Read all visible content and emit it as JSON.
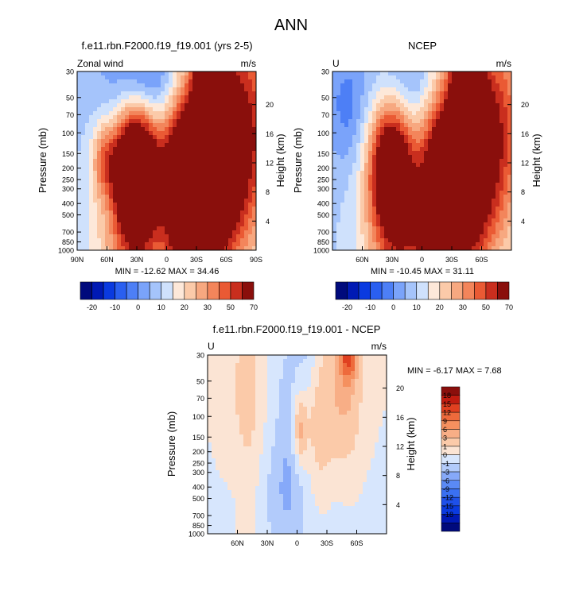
{
  "main_title": "ANN",
  "chart_data": [
    {
      "type": "heatmap",
      "id": "model",
      "title": "f.e11.rbn.F2000.f19_f19.001 (yrs 2-5)",
      "left_label": "Zonal wind",
      "units": "m/s",
      "ylabel": "Pressure (mb)",
      "ylabel_right": "Height (km)",
      "pressure_levels": [
        "30",
        "50",
        "70",
        "100",
        "150",
        "200",
        "250",
        "300",
        "400",
        "500",
        "700",
        "850",
        "1000"
      ],
      "height_ticks": [
        "20",
        "16",
        "12",
        "8",
        "4"
      ],
      "lat_ticks": [
        "90N",
        "60N",
        "30N",
        "0",
        "30S",
        "60S",
        "90S"
      ],
      "stats": "MIN = -12.62  MAX = 34.46",
      "levels": [
        "-20",
        "-10",
        "0",
        "10",
        "20",
        "30",
        "50",
        "70"
      ],
      "palette": [
        "#000a7c",
        "#0019b4",
        "#0a3ae0",
        "#2a5ff0",
        "#4d7ff6",
        "#7aa3fa",
        "#a5c4fb",
        "#cfe1fc",
        "#fde8d9",
        "#fbcaa9",
        "#f7a880",
        "#f3855b",
        "#ea5a34",
        "#c92e1e",
        "#8a0f0c"
      ],
      "background_level": 6,
      "features": [
        {
          "lat": -28,
          "p": 240,
          "wlat": 46,
          "wp": 1.8,
          "v": 16,
          "tilt": 0.32
        },
        {
          "lat": -46,
          "p": 34,
          "wlat": 9,
          "wp": 0.9,
          "v": 17
        },
        {
          "lat": 32,
          "p": 200,
          "wlat": 14,
          "wp": 0.85,
          "v": 11
        },
        {
          "lat": 62,
          "p": 170,
          "wlat": 9,
          "wp": 0.5,
          "v": 4
        },
        {
          "lat": 5,
          "p": 260,
          "wlat": 14,
          "wp": 1.1,
          "v": -4
        },
        {
          "lat": 12,
          "p": 40,
          "wlat": 30,
          "wp": 0.75,
          "v": -5
        },
        {
          "lat": 5,
          "p": 1000,
          "wlat": 18,
          "wp": 0.7,
          "v": -3
        }
      ]
    },
    {
      "type": "heatmap",
      "id": "ncep",
      "title": "NCEP",
      "left_label": "U",
      "units": "m/s",
      "ylabel": "Pressure (mb)",
      "ylabel_right": "Height (km)",
      "pressure_levels": [
        "30",
        "50",
        "70",
        "100",
        "150",
        "200",
        "250",
        "300",
        "400",
        "500",
        "700",
        "850",
        "1000"
      ],
      "height_ticks": [
        "20",
        "16",
        "12",
        "8",
        "4"
      ],
      "lat_ticks": [
        "60N",
        "30N",
        "0",
        "30S",
        "60S"
      ],
      "stats": "MIN = -10.45  MAX =  31.11",
      "levels": [
        "-20",
        "-10",
        "0",
        "10",
        "20",
        "30",
        "50",
        "70"
      ],
      "palette": [
        "#000a7c",
        "#0019b4",
        "#0a3ae0",
        "#2a5ff0",
        "#4d7ff6",
        "#7aa3fa",
        "#a5c4fb",
        "#cfe1fc",
        "#fde8d9",
        "#fbcaa9",
        "#f7a880",
        "#f3855b",
        "#ea5a34",
        "#c92e1e",
        "#8a0f0c"
      ],
      "background_level": 6,
      "features": [
        {
          "lat": -30,
          "p": 250,
          "wlat": 42,
          "wp": 1.8,
          "v": 14,
          "tilt": 0.32
        },
        {
          "lat": -46,
          "p": 34,
          "wlat": 9,
          "wp": 0.9,
          "v": 13
        },
        {
          "lat": 32,
          "p": 200,
          "wlat": 15,
          "wp": 0.9,
          "v": 9
        },
        {
          "lat": 5,
          "p": 280,
          "wlat": 13,
          "wp": 1.2,
          "v": -3.5
        },
        {
          "lat": 5,
          "p": 40,
          "wlat": 25,
          "wp": 0.75,
          "v": -3
        },
        {
          "lat": 75,
          "p": 60,
          "wlat": 14,
          "wp": 0.8,
          "v": -2
        }
      ]
    },
    {
      "type": "heatmap",
      "id": "diff",
      "title": "f.e11.rbn.F2000.f19_f19.001 - NCEP",
      "left_label": "U",
      "units": "m/s",
      "ylabel": "Pressure (mb)",
      "ylabel_right": "Height (km)",
      "pressure_levels": [
        "30",
        "50",
        "70",
        "100",
        "150",
        "200",
        "250",
        "300",
        "400",
        "500",
        "700",
        "850",
        "1000"
      ],
      "height_ticks": [
        "20",
        "16",
        "12",
        "8",
        "4"
      ],
      "lat_ticks": [
        "60N",
        "30N",
        "0",
        "30S",
        "60S"
      ],
      "stats": "MIN =  -6.17  MAX =   7.68",
      "levels": [
        "-18",
        "-15",
        "-12",
        "-9",
        "-6",
        "-3",
        "-1",
        "0",
        "1",
        "3",
        "6",
        "9",
        "12",
        "15",
        "18"
      ],
      "palette": [
        "#000a7c",
        "#0019b4",
        "#0a3ae0",
        "#1e50ea",
        "#3a70f2",
        "#5a8af5",
        "#86a9f9",
        "#b2cbfb",
        "#d7e6fd",
        "#fbe4d4",
        "#fbcaa9",
        "#f8ae86",
        "#f5905f",
        "#ee6a3c",
        "#e04020",
        "#c01c10",
        "#8a0f0c"
      ],
      "background_level": 8.5,
      "features": [
        {
          "lat": -48,
          "p": 60,
          "wlat": 13,
          "wp": 1.3,
          "v": 2.2
        },
        {
          "lat": -52,
          "p": 30,
          "wlat": 6,
          "wp": 0.35,
          "v": 4
        },
        {
          "lat": -22,
          "p": 150,
          "wlat": 10,
          "wp": 1.2,
          "v": 1.8
        },
        {
          "lat": -3,
          "p": 130,
          "wlat": 5,
          "wp": 0.5,
          "v": 2.8
        },
        {
          "lat": 10,
          "p": 120,
          "wlat": 10,
          "wp": 1.8,
          "v": -1.3
        },
        {
          "lat": -10,
          "p": 30,
          "wlat": 8,
          "wp": 0.7,
          "v": -1.2
        },
        {
          "lat": 48,
          "p": 150,
          "wlat": 10,
          "wp": 2.2,
          "v": 1.4
        },
        {
          "lat": 70,
          "p": 60,
          "wlat": 10,
          "wp": 1.5,
          "v": 0.8
        },
        {
          "lat": 10,
          "p": 500,
          "wlat": 45,
          "wp": 0.9,
          "v": -1.2
        }
      ]
    }
  ]
}
